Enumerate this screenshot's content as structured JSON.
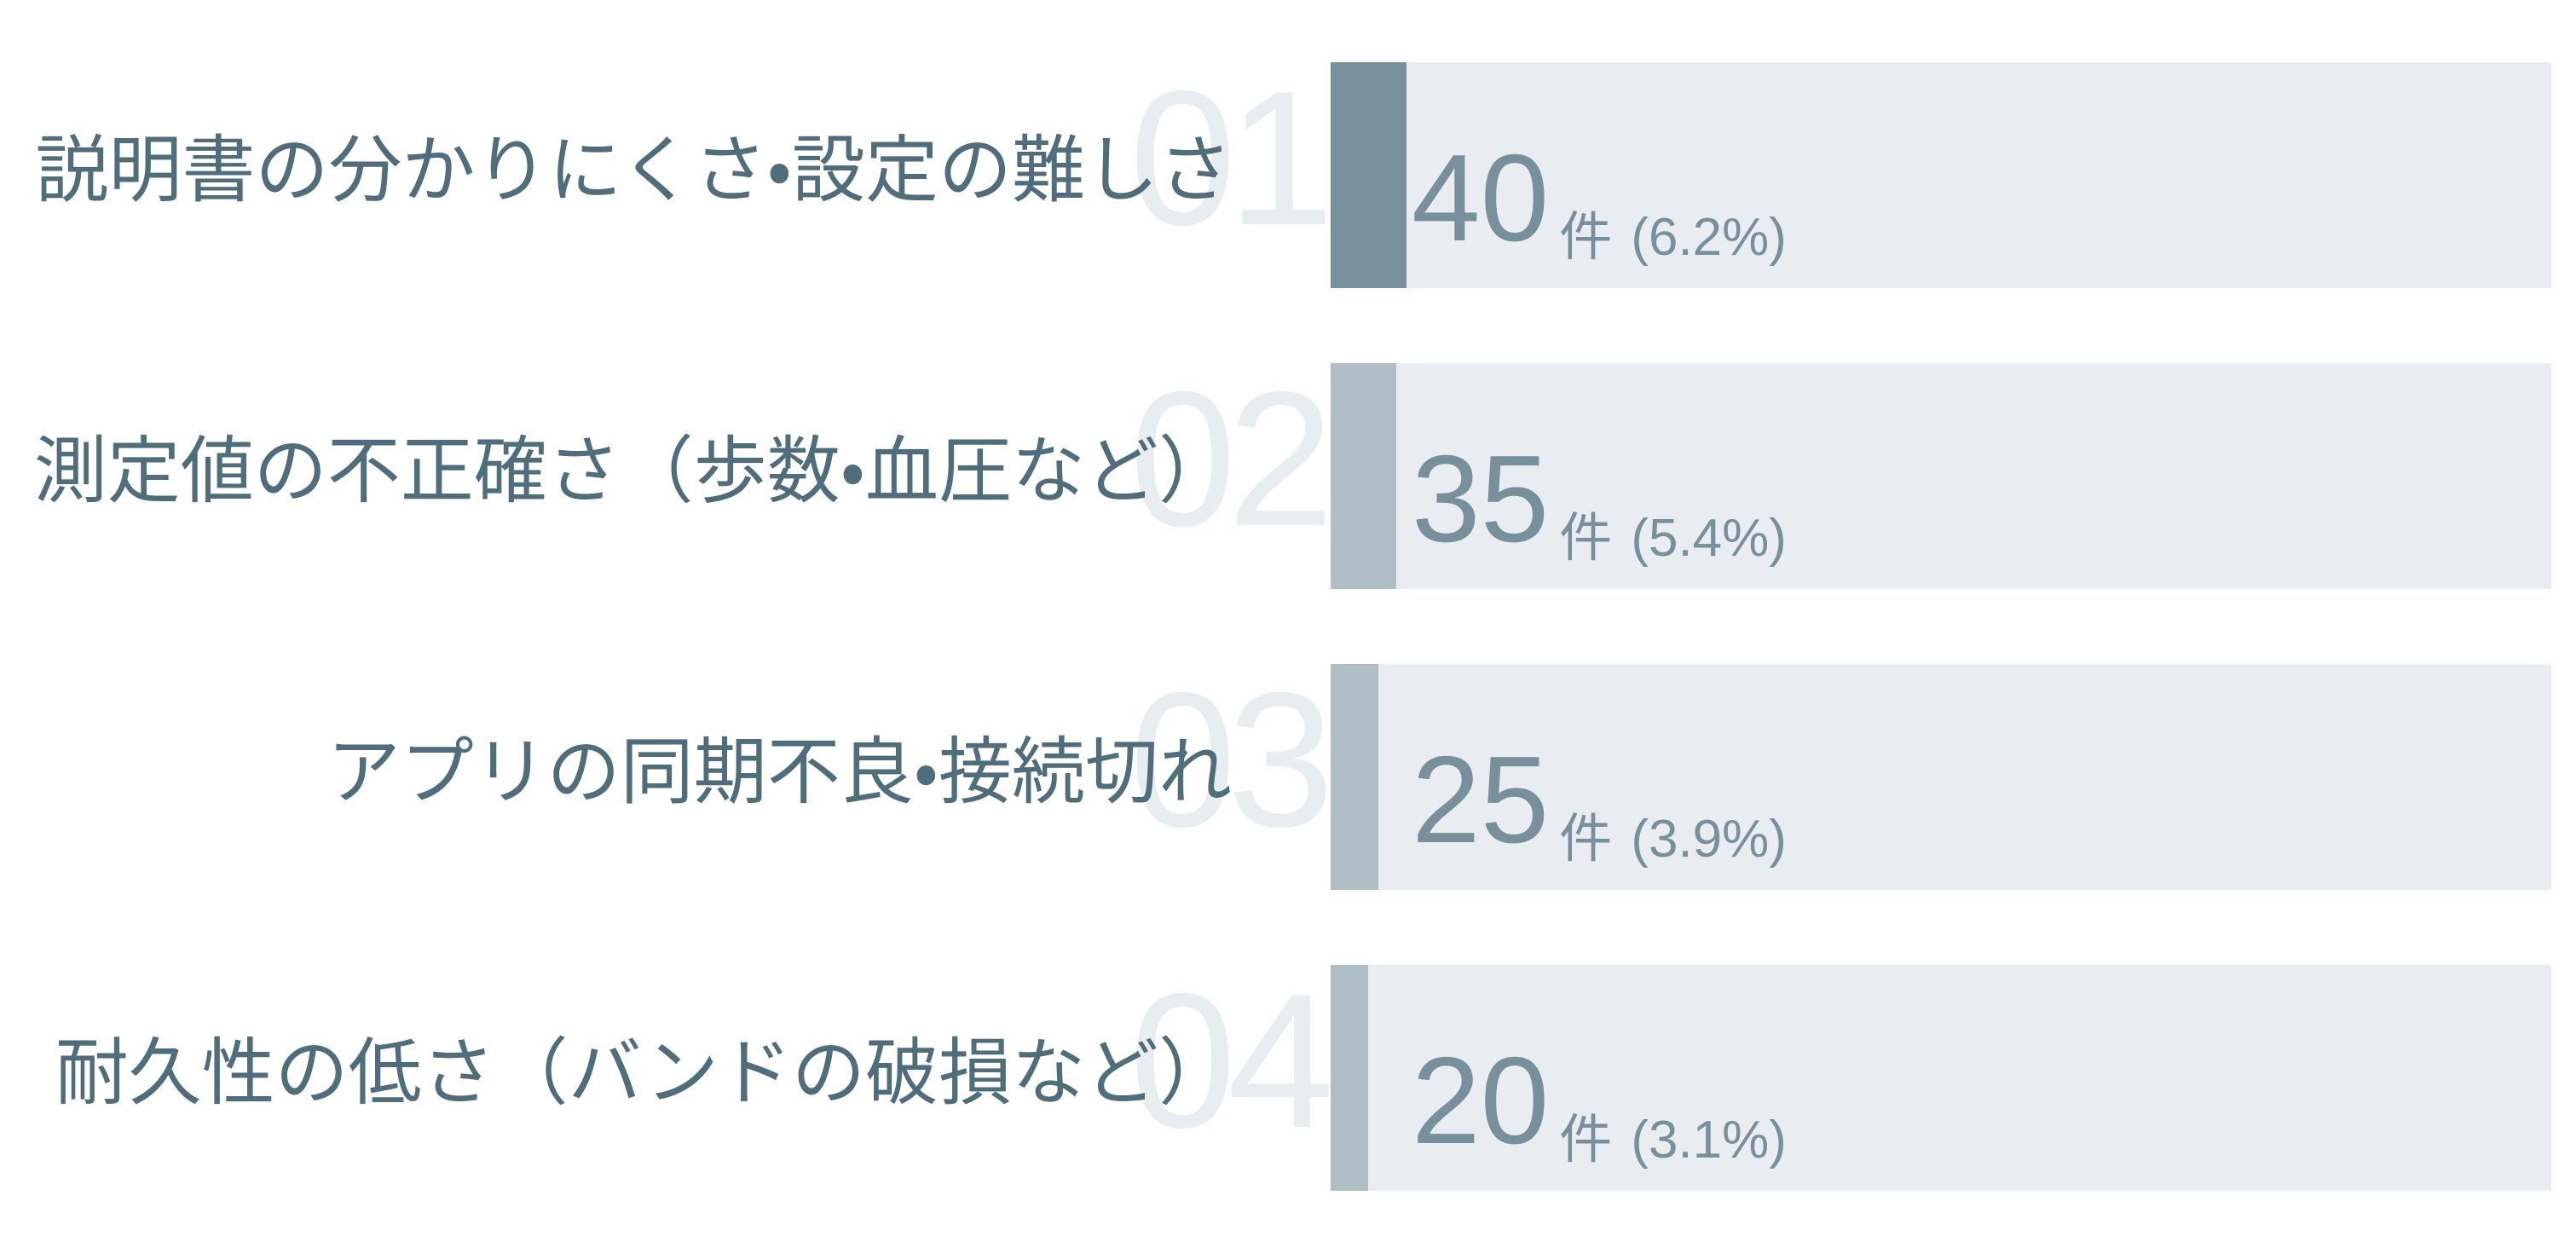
{
  "chart_data": {
    "type": "bar",
    "orientation": "horizontal",
    "title": "",
    "categories": [
      "説明書の分かりにくさ・設定の難しさ",
      "測定値の不正確さ（歩数・血圧など）",
      "アプリの同期不良・接続切れ",
      "耐久性の低さ（バンドの破損など）"
    ],
    "values": [
      40,
      35,
      25,
      20
    ],
    "percentages": [
      6.2,
      5.4,
      3.9,
      3.1
    ],
    "unit": "件",
    "ranks": [
      "01",
      "02",
      "03",
      "04"
    ],
    "value_labels": [
      "40件 (6.2%)",
      "35件 (5.4%)",
      "25件 (3.9%)",
      "20件 (3.1%)"
    ],
    "xlim_percent": [
      0,
      100
    ],
    "grid": false,
    "legend": false,
    "bar_fill_meaning": "accent strip width equals percentage of full track width",
    "highlighted_rank": "01"
  },
  "colors": {
    "background": "#FFFFFF",
    "bar_track": "#E9EDF1",
    "bar_fill_rank1": "#78909C",
    "bar_fill_others": "#B0BEC5",
    "label_text": "#4F6D7B",
    "value_text": "#78909C",
    "rank_numeral": "#E8EDF0"
  },
  "rows": [
    {
      "rank": "01",
      "label": "説明書の分かりにくさ・設定の難しさ",
      "value": "40",
      "unit": "件",
      "pct_label": "(6.2%)",
      "pct": 6.2
    },
    {
      "rank": "02",
      "label": "測定値の不正確さ（歩数・血圧など）",
      "value": "35",
      "unit": "件",
      "pct_label": "(5.4%)",
      "pct": 5.4
    },
    {
      "rank": "03",
      "label": "アプリの同期不良・接続切れ",
      "value": "25",
      "unit": "件",
      "pct_label": "(3.9%)",
      "pct": 3.9
    },
    {
      "rank": "04",
      "label": "耐久性の低さ（バンドの破損など）",
      "value": "20",
      "unit": "件",
      "pct_label": "(3.1%)",
      "pct": 3.1
    }
  ]
}
